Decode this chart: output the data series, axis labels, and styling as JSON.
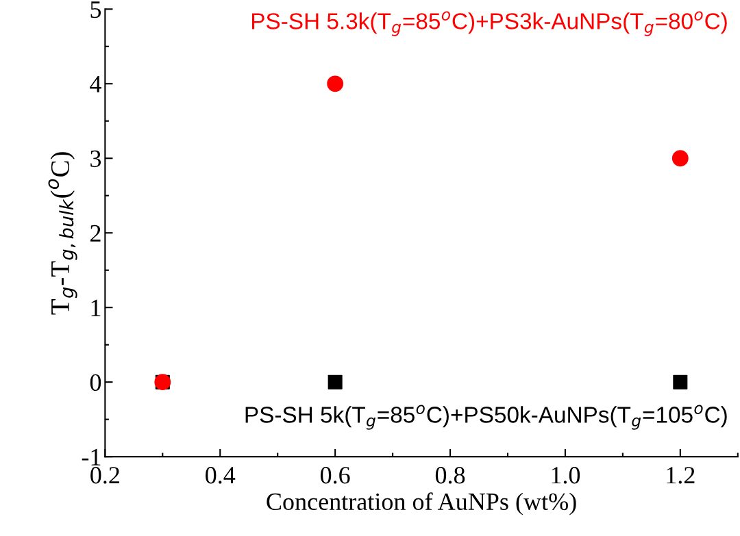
{
  "chart_data": {
    "type": "scatter",
    "xlabel": "Concentration of AuNPs (wt%)",
    "ylabel": "T$_{g}$-T$_{g,bulk}$($^{o}$C)",
    "xlim": [
      0.2,
      1.3
    ],
    "xticks": [
      {
        "value": 0.2,
        "label": "0.2"
      },
      {
        "value": 0.4,
        "label": "0.4"
      },
      {
        "value": 0.6,
        "label": "0.6"
      },
      {
        "value": 0.8,
        "label": "0.8"
      },
      {
        "value": 1.0,
        "label": "1.0"
      },
      {
        "value": 1.2,
        "label": "1.2"
      }
    ],
    "ylim": [
      -1,
      5
    ],
    "yticks": [
      -1,
      0,
      1,
      2,
      3,
      4,
      5
    ],
    "grid": false,
    "legend": false,
    "series": [
      {
        "name": "PS-SH 5k(T$_{g}$=85$^{o}$C)+PS50k-AuNPs(T$_{g}$=105$^{o}$C)",
        "color": "#000000",
        "marker": "square",
        "x": [
          0.3,
          0.6,
          1.2
        ],
        "values": [
          0,
          0,
          0
        ]
      },
      {
        "name": "PS-SH 5.3k(T$_{g}$=85$^{o}$C)+PS3k-AuNPs(T$_{g}$=80$^{o}$C)",
        "color": "#ff0000",
        "marker": "circle",
        "x": [
          0.3,
          0.6,
          1.2
        ],
        "values": [
          0,
          4,
          3
        ]
      }
    ]
  }
}
